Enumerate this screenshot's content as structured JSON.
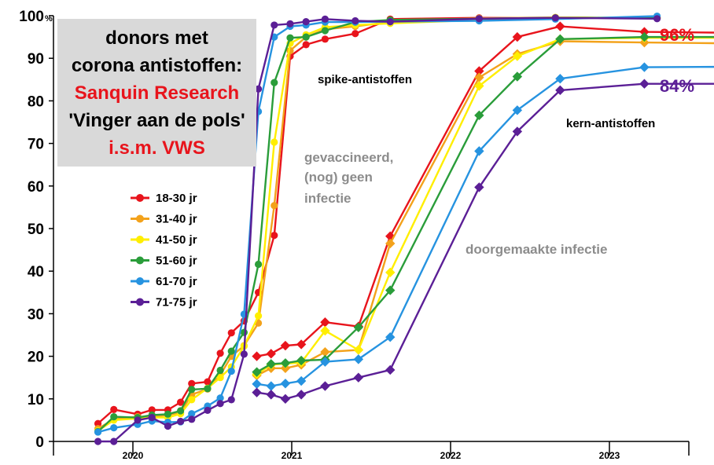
{
  "title_box": {
    "line1": "donors met",
    "line2": "corona antistoffen:",
    "line3": "Sanquin Research",
    "line4": "'Vinger aan de pols'",
    "line5": "i.s.m. VWS"
  },
  "annotations": {
    "spike": "spike-antistoffen",
    "kern": "kern-antistoffen",
    "gevac1": "gevaccineerd,",
    "gevac2": "(nog) geen",
    "gevac3": "infectie",
    "doorgemaakt": "doorgemaakte infectie",
    "end_top": "96%",
    "end_bottom": "84%"
  },
  "colors": {
    "18-30 jr": "#e8141c",
    "31-40 jr": "#f3a21b",
    "41-50 jr": "#ffee00",
    "51-60 jr": "#2a9d3a",
    "61-70 jr": "#2693e0",
    "71-75 jr": "#5b1f96",
    "annotation_gray": "#8c8c8c",
    "title_box_bg": "#d9d9d9"
  },
  "chart_data": {
    "type": "line",
    "ylim": [
      0,
      100
    ],
    "y_ticks": [
      "0",
      "10",
      "20",
      "30",
      "40",
      "50",
      "60",
      "70",
      "80",
      "90",
      "100"
    ],
    "y_percent_suffix": "%",
    "x_year_labels": [
      "2020",
      "2021",
      "2022",
      "2023"
    ],
    "x_domain": [
      2019.5,
      2023.5
    ],
    "legend_position": "left, below title box",
    "series": [
      {
        "name": "18-30 jr",
        "group": "spike",
        "marker": "circle",
        "x": [
          2019.78,
          2019.88,
          2020.03,
          2020.12,
          2020.22,
          2020.3,
          2020.37,
          2020.47,
          2020.55,
          2020.62,
          2020.7,
          2020.79,
          2020.89,
          2020.99,
          2021.09,
          2021.21,
          2021.4,
          2021.62,
          2022.18,
          2022.66,
          2023.3
        ],
        "y": [
          4.2,
          7.5,
          6.4,
          7.4,
          7.4,
          9.2,
          13.6,
          14,
          20.7,
          25.5,
          28.3,
          35,
          48.4,
          90.5,
          93.2,
          94.5,
          95.8,
          99.2,
          99.5,
          99.5,
          99.5
        ]
      },
      {
        "name": "31-40 jr",
        "group": "spike",
        "marker": "circle",
        "x": [
          2019.78,
          2019.88,
          2020.03,
          2020.12,
          2020.22,
          2020.3,
          2020.37,
          2020.47,
          2020.55,
          2020.62,
          2020.7,
          2020.79,
          2020.89,
          2020.99,
          2021.09,
          2021.21,
          2021.4,
          2021.62,
          2022.18,
          2022.66,
          2023.3
        ],
        "y": [
          3,
          5.2,
          5.8,
          5.8,
          6.2,
          6.8,
          11,
          12.3,
          15.6,
          20,
          22.5,
          27.8,
          55.4,
          91.8,
          95,
          96.8,
          97.5,
          98.5,
          99.4,
          99.6,
          99.5
        ]
      },
      {
        "name": "41-50 jr",
        "group": "spike",
        "marker": "circle",
        "x": [
          2019.78,
          2019.88,
          2020.03,
          2020.12,
          2020.22,
          2020.3,
          2020.37,
          2020.47,
          2020.55,
          2020.62,
          2020.7,
          2020.79,
          2020.89,
          2020.99,
          2021.09,
          2021.21,
          2021.4,
          2021.62,
          2022.18,
          2022.66,
          2023.3
        ],
        "y": [
          2.5,
          5,
          5.4,
          5.6,
          5.6,
          6.5,
          9.8,
          12.5,
          15,
          17.5,
          22.4,
          29.5,
          70.3,
          93.5,
          95.5,
          97.3,
          97.8,
          98.2,
          99,
          99.6,
          99.5
        ]
      },
      {
        "name": "51-60 jr",
        "group": "spike",
        "marker": "circle",
        "x": [
          2019.78,
          2019.88,
          2020.03,
          2020.12,
          2020.22,
          2020.3,
          2020.37,
          2020.47,
          2020.55,
          2020.62,
          2020.7,
          2020.79,
          2020.89,
          2020.99,
          2021.09,
          2021.21,
          2021.4,
          2021.62,
          2022.18,
          2022.66,
          2023.3
        ],
        "y": [
          2.3,
          5.8,
          5.6,
          6.2,
          6.4,
          7.2,
          12.2,
          12.4,
          16.7,
          21.2,
          25.6,
          41.6,
          84.3,
          94.8,
          95,
          96.5,
          98.5,
          99,
          99.3,
          99.5,
          99.5
        ]
      },
      {
        "name": "61-70 jr",
        "group": "spike",
        "marker": "circle",
        "x": [
          2019.78,
          2019.88,
          2020.03,
          2020.12,
          2020.22,
          2020.3,
          2020.37,
          2020.47,
          2020.55,
          2020.62,
          2020.7,
          2020.79,
          2020.89,
          2020.99,
          2021.09,
          2021.21,
          2021.4,
          2021.62,
          2022.18,
          2022.66,
          2023.3
        ],
        "y": [
          2.2,
          3.2,
          4,
          4.8,
          4.5,
          4.6,
          6.5,
          8.3,
          10.2,
          16.5,
          29.9,
          77.5,
          95,
          97.5,
          97.8,
          98.5,
          98.5,
          98.6,
          98.8,
          99.2,
          99.9
        ]
      },
      {
        "name": "71-75 jr",
        "group": "spike",
        "marker": "circle",
        "x": [
          2019.78,
          2019.88,
          2020.03,
          2020.12,
          2020.22,
          2020.3,
          2020.37,
          2020.47,
          2020.55,
          2020.62,
          2020.7,
          2020.79,
          2020.89,
          2020.99,
          2021.09,
          2021.21,
          2021.4,
          2021.62,
          2022.18,
          2022.66,
          2023.3
        ],
        "y": [
          0,
          0,
          5,
          5.6,
          3.6,
          4.7,
          5.2,
          7.3,
          8.9,
          9.8,
          20.5,
          82.8,
          97.8,
          98.1,
          98.6,
          99.2,
          98.8,
          98.6,
          99.3,
          99.5,
          99.3
        ]
      },
      {
        "name": "18-30 jr",
        "group": "kern",
        "marker": "diamond",
        "x": [
          2020.78,
          2020.87,
          2020.96,
          2021.06,
          2021.21,
          2021.42,
          2021.62,
          2022.18,
          2022.42,
          2022.69,
          2023.22,
          2023.76
        ],
        "y": [
          20,
          20.6,
          22.5,
          22.8,
          28,
          27,
          48.2,
          87,
          95,
          97.5,
          96.2,
          96
        ]
      },
      {
        "name": "31-40 jr",
        "group": "kern",
        "marker": "diamond",
        "x": [
          2020.78,
          2020.87,
          2020.96,
          2021.06,
          2021.21,
          2021.42,
          2021.62,
          2022.18,
          2022.42,
          2022.69,
          2023.22,
          2023.76
        ],
        "y": [
          15.5,
          17.2,
          17.2,
          18,
          21,
          21.5,
          46.5,
          85.5,
          91,
          94,
          93.7,
          93.5
        ]
      },
      {
        "name": "41-50 jr",
        "group": "kern",
        "marker": "diamond",
        "x": [
          2020.78,
          2020.87,
          2020.96,
          2021.06,
          2021.21,
          2021.42,
          2021.62,
          2022.18,
          2022.42,
          2022.69,
          2023.22,
          2023.76
        ],
        "y": [
          15.8,
          18,
          18.3,
          18.5,
          26,
          21.5,
          39.7,
          83.5,
          90.5,
          94.5,
          94.8,
          94.8
        ]
      },
      {
        "name": "51-60 jr",
        "group": "kern",
        "marker": "diamond",
        "x": [
          2020.78,
          2020.87,
          2020.96,
          2021.06,
          2021.21,
          2021.42,
          2021.62,
          2022.18,
          2022.42,
          2022.69,
          2023.22,
          2023.76
        ],
        "y": [
          16.3,
          18.2,
          18.4,
          19,
          19.2,
          26.8,
          35.5,
          76.6,
          85.7,
          94.5,
          95,
          95
        ]
      },
      {
        "name": "61-70 jr",
        "group": "kern",
        "marker": "diamond",
        "x": [
          2020.78,
          2020.87,
          2020.96,
          2021.06,
          2021.21,
          2021.42,
          2021.62,
          2022.18,
          2022.42,
          2022.69,
          2023.22,
          2023.76
        ],
        "y": [
          13.5,
          13,
          13.6,
          14.2,
          18.7,
          19.3,
          24.5,
          68.2,
          77.8,
          85.2,
          87.9,
          88
        ]
      },
      {
        "name": "71-75 jr",
        "group": "kern",
        "marker": "diamond",
        "x": [
          2020.78,
          2020.87,
          2020.96,
          2021.06,
          2021.21,
          2021.42,
          2021.62,
          2022.18,
          2022.42,
          2022.69,
          2023.22,
          2023.76
        ],
        "y": [
          11.5,
          11,
          10,
          11,
          13,
          15,
          16.8,
          59.7,
          72.8,
          82.5,
          84,
          84
        ]
      }
    ]
  }
}
